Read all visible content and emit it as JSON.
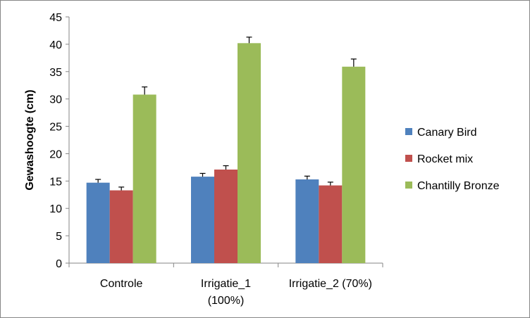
{
  "chart_data": {
    "type": "bar",
    "title": "",
    "xlabel": "",
    "ylabel": "Gewashoogte (cm)",
    "ylim": [
      0,
      45
    ],
    "ytick_step": 5,
    "ytick_labels": [
      "0",
      "5",
      "10",
      "15",
      "20",
      "25",
      "30",
      "35",
      "40",
      "45"
    ],
    "grid": false,
    "legend_position": "right",
    "categories": [
      {
        "lines": [
          "Controle"
        ]
      },
      {
        "lines": [
          "Irrigatie_1",
          "(100%)"
        ]
      },
      {
        "lines": [
          "Irrigatie_2 (70%)"
        ]
      }
    ],
    "series": [
      {
        "name": "Canary Bird",
        "color": "#4F81BD",
        "values": [
          14.7,
          15.8,
          15.3
        ],
        "errors": [
          0.6,
          0.6,
          0.6
        ]
      },
      {
        "name": "Rocket mix",
        "color": "#C0504D",
        "values": [
          13.3,
          17.1,
          14.2
        ],
        "errors": [
          0.6,
          0.7,
          0.6
        ]
      },
      {
        "name": "Chantilly Bronze",
        "color": "#9BBB59",
        "values": [
          30.8,
          40.2,
          35.9
        ],
        "errors": [
          1.4,
          1.1,
          1.4
        ]
      }
    ]
  }
}
